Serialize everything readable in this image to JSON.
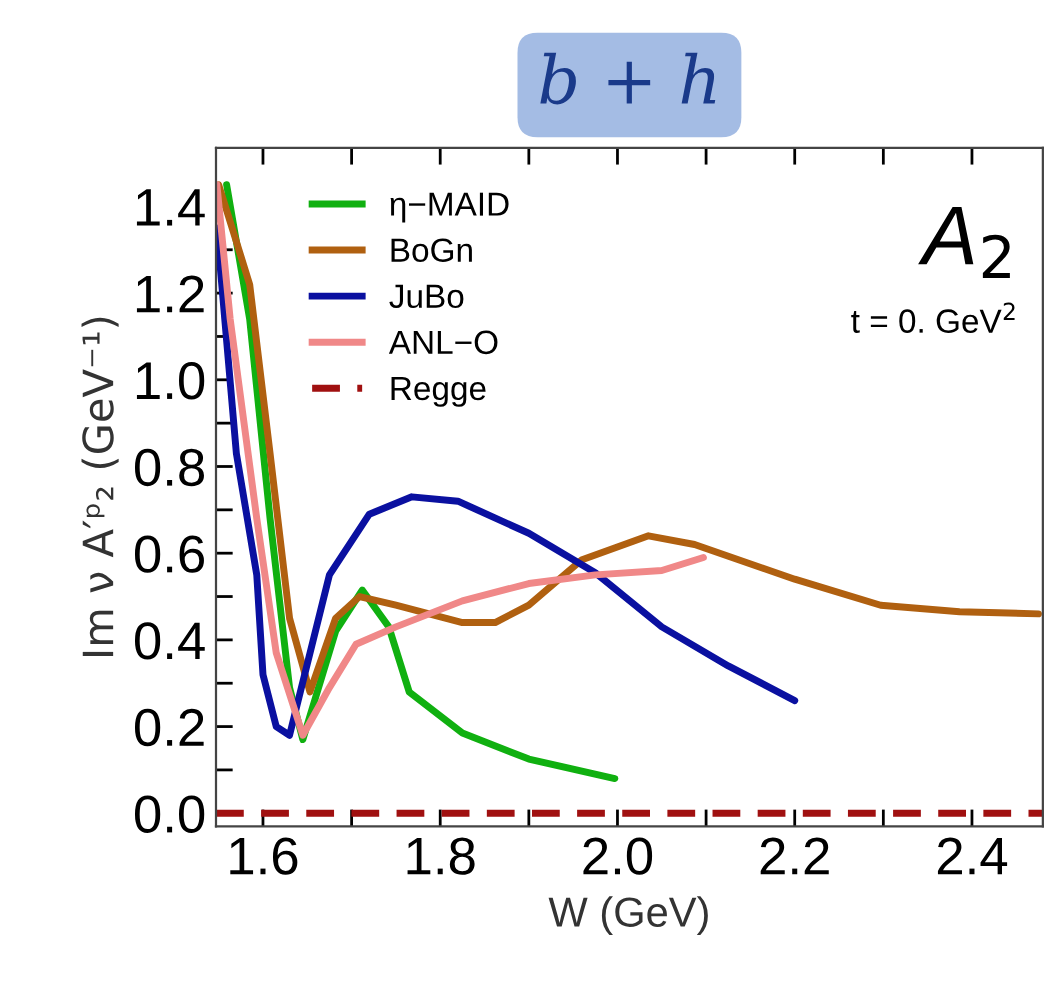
{
  "chart_data": {
    "type": "line",
    "title": "b + h",
    "xlabel": "W (GeV)",
    "ylabel": "Im ν A′ᵖ₂ (GeV⁻¹)",
    "annotations": [
      "A$_{2}$",
      "t = 0. GeV$^{2}$"
    ],
    "series": [
      {
        "name": "η−MAID",
        "color": "#10b010",
        "x": [
          1.559,
          1.585,
          1.608,
          1.63,
          1.645,
          1.682,
          1.712,
          1.742,
          1.765,
          1.825,
          1.9,
          1.997
        ],
        "values": [
          1.45,
          1.14,
          0.68,
          0.29,
          0.17,
          0.42,
          0.515,
          0.43,
          0.28,
          0.185,
          0.125,
          0.08
        ]
      },
      {
        "name": "BoGn",
        "color": "#b06010",
        "x": [
          1.55,
          1.585,
          1.608,
          1.63,
          1.653,
          1.682,
          1.709,
          1.75,
          1.825,
          1.862,
          1.9,
          1.96,
          2.035,
          2.087,
          2.2,
          2.297,
          2.386,
          2.475
        ],
        "values": [
          1.45,
          1.22,
          0.83,
          0.45,
          0.28,
          0.45,
          0.5,
          0.48,
          0.44,
          0.44,
          0.48,
          0.585,
          0.64,
          0.62,
          0.54,
          0.48,
          0.465,
          0.46
        ]
      },
      {
        "name": "JuBo",
        "color": "#0a10a0",
        "x": [
          1.548,
          1.57,
          1.593,
          1.6,
          1.615,
          1.63,
          1.675,
          1.72,
          1.768,
          1.82,
          1.9,
          1.975,
          2.05,
          2.125,
          2.2
        ],
        "values": [
          1.35,
          0.83,
          0.55,
          0.32,
          0.2,
          0.18,
          0.55,
          0.69,
          0.73,
          0.72,
          0.646,
          0.555,
          0.43,
          0.34,
          0.26
        ]
      },
      {
        "name": "ANL−O",
        "color": "#f08888",
        "x": [
          1.548,
          1.563,
          1.593,
          1.615,
          1.645,
          1.675,
          1.705,
          1.75,
          1.825,
          1.9,
          1.975,
          2.05,
          2.097
        ],
        "values": [
          1.45,
          1.14,
          0.68,
          0.37,
          0.18,
          0.29,
          0.39,
          0.43,
          0.49,
          0.53,
          0.55,
          0.56,
          0.59
        ]
      },
      {
        "name": "Regge",
        "color": "#a01010",
        "line_style": "dashed",
        "x": [
          1.547,
          2.48
        ],
        "values": [
          0,
          0
        ]
      }
    ],
    "xlim": [
      1.547,
      2.48
    ],
    "ylim": [
      -0.03,
      1.535
    ],
    "xticks": [
      1.6,
      {
        "value": 1.7,
        "label": null
      },
      1.8,
      {
        "value": 1.9,
        "label": null
      },
      {
        "value": 2.0,
        "label": "2.0"
      },
      {
        "value": 2.1,
        "label": null
      },
      2.2,
      {
        "value": 2.3,
        "label": null
      },
      2.4
    ],
    "yticks": [
      {
        "value": 0.0,
        "label": "0.0"
      },
      {
        "value": 0.1,
        "label": null
      },
      0.2,
      {
        "value": 0.3,
        "label": null
      },
      0.4,
      {
        "value": 0.5,
        "label": null
      },
      0.6,
      {
        "value": 0.7,
        "label": null
      },
      0.8,
      {
        "value": 0.9,
        "label": null
      },
      {
        "value": 1.0,
        "label": "1.0"
      },
      {
        "value": 1.1,
        "label": null
      },
      1.2,
      {
        "value": 1.3,
        "label": null
      },
      1.4
    ],
    "legend": "top left",
    "grid": false
  }
}
